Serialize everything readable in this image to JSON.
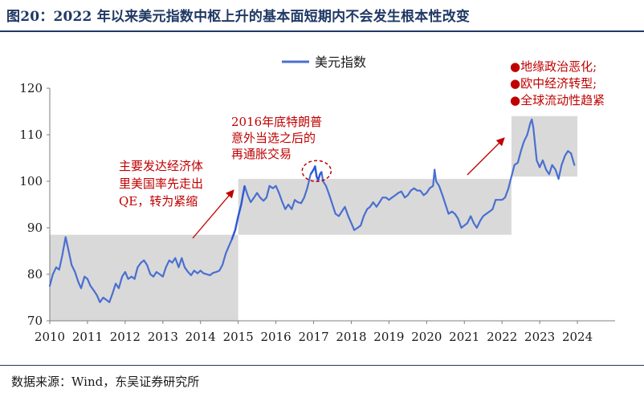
{
  "figure": {
    "title": "图20：2022 年以来美元指数中枢上升的基本面短期内不会发生根本性改变",
    "source": "数据来源：Wind，东吴证券研究所"
  },
  "colors": {
    "line": "#4a6fd0",
    "line_highlight": "#2f58d6",
    "zone": "#d9d9d9",
    "annotation": "#c00000",
    "axis": "#7f7f7f",
    "title": "#1f3864"
  },
  "chart_data": {
    "type": "line",
    "title": "",
    "xlabel": "",
    "ylabel": "",
    "ylim": [
      70,
      120
    ],
    "yticks": [
      "70",
      "80",
      "90",
      "100",
      "110",
      "120"
    ],
    "xlim": [
      2010,
      2025
    ],
    "xticks": [
      "2010",
      "2011",
      "2012",
      "2013",
      "2014",
      "2015",
      "2016",
      "2017",
      "2018",
      "2019",
      "2020",
      "2021",
      "2022",
      "2023",
      "2024"
    ],
    "grid": false,
    "legend": {
      "position": "top-center",
      "entries": [
        "美元指数"
      ]
    },
    "series": [
      {
        "name": "美元指数",
        "points": [
          [
            2010.0,
            77.5
          ],
          [
            2010.08,
            80.0
          ],
          [
            2010.17,
            81.5
          ],
          [
            2010.25,
            81.0
          ],
          [
            2010.33,
            84.0
          ],
          [
            2010.42,
            88.0
          ],
          [
            2010.5,
            85.0
          ],
          [
            2010.58,
            82.0
          ],
          [
            2010.67,
            80.5
          ],
          [
            2010.75,
            78.5
          ],
          [
            2010.83,
            77.0
          ],
          [
            2010.92,
            79.5
          ],
          [
            2011.0,
            79.0
          ],
          [
            2011.08,
            77.5
          ],
          [
            2011.17,
            76.5
          ],
          [
            2011.25,
            75.5
          ],
          [
            2011.33,
            74.0
          ],
          [
            2011.42,
            75.0
          ],
          [
            2011.5,
            74.5
          ],
          [
            2011.58,
            74.0
          ],
          [
            2011.67,
            76.0
          ],
          [
            2011.75,
            78.0
          ],
          [
            2011.83,
            77.0
          ],
          [
            2011.92,
            79.5
          ],
          [
            2012.0,
            80.5
          ],
          [
            2012.08,
            79.0
          ],
          [
            2012.17,
            79.5
          ],
          [
            2012.25,
            79.0
          ],
          [
            2012.33,
            81.5
          ],
          [
            2012.42,
            82.5
          ],
          [
            2012.5,
            83.0
          ],
          [
            2012.58,
            82.0
          ],
          [
            2012.67,
            80.0
          ],
          [
            2012.75,
            79.5
          ],
          [
            2012.83,
            80.5
          ],
          [
            2012.92,
            80.0
          ],
          [
            2013.0,
            79.5
          ],
          [
            2013.08,
            81.5
          ],
          [
            2013.17,
            83.0
          ],
          [
            2013.25,
            82.5
          ],
          [
            2013.33,
            83.5
          ],
          [
            2013.42,
            81.5
          ],
          [
            2013.5,
            83.5
          ],
          [
            2013.58,
            81.5
          ],
          [
            2013.67,
            80.5
          ],
          [
            2013.75,
            79.8
          ],
          [
            2013.83,
            80.8
          ],
          [
            2013.92,
            80.2
          ],
          [
            2014.0,
            80.8
          ],
          [
            2014.08,
            80.2
          ],
          [
            2014.17,
            80.0
          ],
          [
            2014.25,
            79.8
          ],
          [
            2014.33,
            80.3
          ],
          [
            2014.42,
            80.5
          ],
          [
            2014.5,
            80.8
          ],
          [
            2014.58,
            82.0
          ],
          [
            2014.67,
            84.5
          ],
          [
            2014.75,
            86.0
          ],
          [
            2014.83,
            87.5
          ],
          [
            2014.92,
            89.5
          ],
          [
            2015.0,
            92.5
          ],
          [
            2015.08,
            95.0
          ],
          [
            2015.17,
            99.0
          ],
          [
            2015.25,
            97.0
          ],
          [
            2015.33,
            95.5
          ],
          [
            2015.42,
            96.5
          ],
          [
            2015.5,
            97.5
          ],
          [
            2015.58,
            96.5
          ],
          [
            2015.67,
            95.8
          ],
          [
            2015.75,
            96.5
          ],
          [
            2015.83,
            99.0
          ],
          [
            2015.92,
            98.5
          ],
          [
            2016.0,
            99.0
          ],
          [
            2016.08,
            97.5
          ],
          [
            2016.17,
            95.5
          ],
          [
            2016.25,
            94.0
          ],
          [
            2016.33,
            95.0
          ],
          [
            2016.42,
            94.0
          ],
          [
            2016.5,
            96.0
          ],
          [
            2016.58,
            95.5
          ],
          [
            2016.67,
            95.3
          ],
          [
            2016.75,
            96.5
          ],
          [
            2016.83,
            98.5
          ],
          [
            2016.92,
            101.5
          ],
          [
            2017.0,
            102.5
          ],
          [
            2017.04,
            103.2
          ],
          [
            2017.08,
            101.0
          ],
          [
            2017.12,
            100.2
          ],
          [
            2017.17,
            101.5
          ],
          [
            2017.21,
            102.0
          ],
          [
            2017.25,
            100.0
          ],
          [
            2017.33,
            99.0
          ],
          [
            2017.42,
            97.0
          ],
          [
            2017.5,
            95.0
          ],
          [
            2017.58,
            93.0
          ],
          [
            2017.67,
            92.5
          ],
          [
            2017.75,
            93.5
          ],
          [
            2017.83,
            94.5
          ],
          [
            2017.92,
            92.5
          ],
          [
            2018.0,
            91.0
          ],
          [
            2018.08,
            89.5
          ],
          [
            2018.17,
            90.0
          ],
          [
            2018.25,
            90.5
          ],
          [
            2018.33,
            92.5
          ],
          [
            2018.42,
            94.0
          ],
          [
            2018.5,
            94.5
          ],
          [
            2018.58,
            95.5
          ],
          [
            2018.67,
            94.5
          ],
          [
            2018.75,
            95.5
          ],
          [
            2018.83,
            96.5
          ],
          [
            2018.92,
            96.5
          ],
          [
            2019.0,
            96.0
          ],
          [
            2019.08,
            96.5
          ],
          [
            2019.17,
            97.0
          ],
          [
            2019.25,
            97.5
          ],
          [
            2019.33,
            97.8
          ],
          [
            2019.42,
            96.5
          ],
          [
            2019.5,
            97.0
          ],
          [
            2019.58,
            98.0
          ],
          [
            2019.67,
            98.5
          ],
          [
            2019.75,
            98.0
          ],
          [
            2019.83,
            98.0
          ],
          [
            2019.92,
            97.0
          ],
          [
            2020.0,
            97.5
          ],
          [
            2020.08,
            98.5
          ],
          [
            2020.17,
            99.0
          ],
          [
            2020.21,
            102.5
          ],
          [
            2020.25,
            100.0
          ],
          [
            2020.33,
            99.0
          ],
          [
            2020.42,
            97.0
          ],
          [
            2020.5,
            95.0
          ],
          [
            2020.58,
            93.0
          ],
          [
            2020.67,
            93.5
          ],
          [
            2020.75,
            93.0
          ],
          [
            2020.83,
            92.0
          ],
          [
            2020.92,
            90.0
          ],
          [
            2021.0,
            90.5
          ],
          [
            2021.08,
            91.0
          ],
          [
            2021.17,
            92.5
          ],
          [
            2021.25,
            91.0
          ],
          [
            2021.33,
            90.0
          ],
          [
            2021.42,
            91.5
          ],
          [
            2021.5,
            92.5
          ],
          [
            2021.58,
            93.0
          ],
          [
            2021.67,
            93.5
          ],
          [
            2021.75,
            94.0
          ],
          [
            2021.83,
            96.0
          ],
          [
            2021.92,
            96.0
          ],
          [
            2022.0,
            96.0
          ],
          [
            2022.08,
            96.5
          ],
          [
            2022.17,
            98.5
          ],
          [
            2022.25,
            101.0
          ],
          [
            2022.33,
            103.5
          ],
          [
            2022.42,
            104.0
          ],
          [
            2022.5,
            106.5
          ],
          [
            2022.58,
            108.5
          ],
          [
            2022.67,
            110.0
          ],
          [
            2022.75,
            112.5
          ],
          [
            2022.79,
            113.3
          ],
          [
            2022.83,
            111.5
          ],
          [
            2022.92,
            104.5
          ],
          [
            2023.0,
            103.0
          ],
          [
            2023.08,
            104.5
          ],
          [
            2023.17,
            102.5
          ],
          [
            2023.25,
            101.5
          ],
          [
            2023.33,
            103.5
          ],
          [
            2023.42,
            102.5
          ],
          [
            2023.5,
            100.5
          ],
          [
            2023.58,
            103.5
          ],
          [
            2023.67,
            105.5
          ],
          [
            2023.75,
            106.5
          ],
          [
            2023.83,
            106.0
          ],
          [
            2023.92,
            103.5
          ]
        ]
      }
    ],
    "zones": [
      {
        "x0": 2010.0,
        "x1": 2015.0,
        "y0": 70,
        "y1": 88.5
      },
      {
        "x0": 2015.0,
        "x1": 2022.25,
        "y0": 88.5,
        "y1": 100.5
      },
      {
        "x0": 2022.25,
        "x1": 2024.0,
        "y0": 101.0,
        "y1": 114.0
      }
    ],
    "annotations": [
      {
        "id": "qe",
        "lines": [
          "主要发达经济体",
          "里美国率先走出",
          "QE，转为紧缩"
        ]
      },
      {
        "id": "trump",
        "lines": [
          "2016年底特朗普",
          "意外当选之后的",
          "再通胀交易"
        ]
      },
      {
        "id": "factors",
        "lines": [
          "●地缘政治恶化;",
          "●欧中经济转型;",
          "●全球流动性趋紧"
        ]
      }
    ]
  }
}
